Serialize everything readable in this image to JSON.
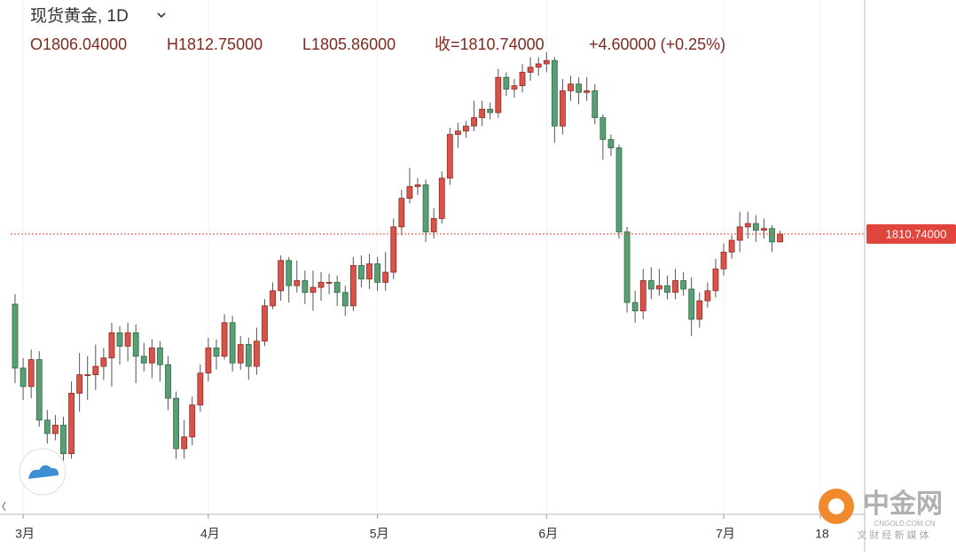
{
  "chart_data": {
    "type": "candlestick",
    "title": "现货黄金, 1D",
    "header": [
      "O1806.04000",
      "H1812.75000",
      "L1805.86000",
      "收=1810.74000",
      "+4.60000 (+0.25%)"
    ],
    "categories": [
      null,
      "3月",
      null,
      null,
      null,
      null,
      null,
      null,
      null,
      null,
      null,
      null,
      null,
      null,
      null,
      null,
      null,
      null,
      null,
      null,
      null,
      null,
      null,
      null,
      "4月",
      null,
      null,
      null,
      null,
      null,
      null,
      null,
      null,
      null,
      null,
      null,
      null,
      null,
      null,
      null,
      null,
      null,
      null,
      null,
      null,
      "5月",
      null,
      null,
      null,
      null,
      null,
      null,
      null,
      null,
      null,
      null,
      null,
      null,
      null,
      null,
      null,
      null,
      null,
      null,
      null,
      null,
      "6月",
      null,
      null,
      null,
      null,
      null,
      null,
      null,
      null,
      null,
      null,
      null,
      null,
      null,
      null,
      null,
      null,
      null,
      null,
      null,
      null,
      null,
      "7月",
      null,
      null,
      null,
      null,
      null,
      null,
      null,
      null,
      null,
      null,
      null,
      "18"
    ],
    "open": [
      1769,
      1731,
      1720,
      1736,
      1700,
      1692,
      1697,
      1680,
      1716,
      1727,
      1727,
      1732,
      1737,
      1752,
      1744,
      1752,
      1738,
      1734,
      1743,
      1733,
      1713,
      1683,
      1690,
      1709,
      1728,
      1743,
      1738,
      1758,
      1734,
      1745,
      1732,
      1747,
      1768,
      1777,
      1795,
      1780,
      1783,
      1776,
      1779,
      1782,
      1782,
      1776,
      1768,
      1792,
      1784,
      1793,
      1782,
      1788,
      1815,
      1832,
      1839,
      1840,
      1812,
      1820,
      1844,
      1870,
      1872,
      1875,
      1880,
      1885,
      1883,
      1904,
      1897,
      1899,
      1907,
      1910,
      1912,
      1914,
      1875,
      1896,
      1900,
      1895,
      1896,
      1880,
      1867,
      1862,
      1812,
      1770,
      1765,
      1783,
      1778,
      1780,
      1776,
      1783,
      1778,
      1760,
      1771,
      1777,
      1790,
      1800,
      1807,
      1815,
      1817,
      1813,
      1814,
      1806.04,
      null,
      null,
      null,
      null,
      null
    ],
    "high": [
      1775,
      1737,
      1742,
      1741,
      1706,
      1703,
      1702,
      1723,
      1740,
      1738,
      1745,
      1743,
      1758,
      1756,
      1758,
      1757,
      1746,
      1748,
      1747,
      1738,
      1717,
      1700,
      1714,
      1733,
      1749,
      1748,
      1763,
      1762,
      1750,
      1749,
      1755,
      1772,
      1782,
      1798,
      1797,
      1795,
      1789,
      1789,
      1788,
      1787,
      1786,
      1780,
      1797,
      1798,
      1799,
      1797,
      1800,
      1820,
      1837,
      1850,
      1844,
      1843,
      1826,
      1848,
      1874,
      1877,
      1878,
      1890,
      1890,
      1889,
      1909,
      1907,
      1903,
      1912,
      1916,
      1916,
      1919,
      1916,
      1903,
      1905,
      1904,
      1904,
      1900,
      1882,
      1870,
      1864,
      1815,
      1777,
      1790,
      1791,
      1790,
      1786,
      1790,
      1788,
      1785,
      1776,
      1782,
      1796,
      1805,
      1810,
      1824,
      1824,
      1822,
      1820,
      1816,
      1812.75,
      null,
      null,
      null,
      null,
      null
    ],
    "low": [
      1722,
      1712,
      1713,
      1696,
      1686,
      1688,
      1676,
      1677,
      1705,
      1712,
      1718,
      1724,
      1720,
      1733,
      1735,
      1722,
      1729,
      1725,
      1723,
      1706,
      1677,
      1677,
      1685,
      1705,
      1723,
      1730,
      1736,
      1729,
      1730,
      1724,
      1727,
      1744,
      1766,
      1771,
      1770,
      1776,
      1769,
      1765,
      1771,
      1775,
      1768,
      1762,
      1765,
      1779,
      1778,
      1777,
      1777,
      1784,
      1810,
      1829,
      1834,
      1806,
      1808,
      1817,
      1840,
      1862,
      1868,
      1872,
      1875,
      1879,
      1880,
      1893,
      1892,
      1895,
      1902,
      1905,
      1907,
      1865,
      1870,
      1890,
      1888,
      1890,
      1876,
      1855,
      1857,
      1808,
      1764,
      1758,
      1760,
      1772,
      1774,
      1772,
      1772,
      1774,
      1750,
      1755,
      1767,
      1773,
      1786,
      1796,
      1800,
      1808,
      1806,
      1808,
      1800,
      1805.86,
      null,
      null,
      null,
      null,
      null
    ],
    "close": [
      1731,
      1720,
      1736,
      1700,
      1692,
      1697,
      1680,
      1716,
      1727,
      1727,
      1732,
      1737,
      1752,
      1744,
      1752,
      1738,
      1734,
      1743,
      1733,
      1713,
      1683,
      1690,
      1709,
      1728,
      1743,
      1738,
      1758,
      1734,
      1745,
      1732,
      1747,
      1768,
      1777,
      1795,
      1780,
      1783,
      1776,
      1779,
      1782,
      1782,
      1776,
      1768,
      1792,
      1784,
      1793,
      1782,
      1788,
      1815,
      1832,
      1839,
      1840,
      1812,
      1820,
      1844,
      1870,
      1872,
      1875,
      1880,
      1885,
      1883,
      1904,
      1897,
      1899,
      1907,
      1910,
      1912,
      1914,
      1875,
      1896,
      1900,
      1895,
      1896,
      1880,
      1867,
      1862,
      1812,
      1770,
      1765,
      1783,
      1778,
      1780,
      1776,
      1783,
      1778,
      1760,
      1771,
      1777,
      1790,
      1800,
      1807,
      1815,
      1817,
      1813,
      1814,
      1806.04,
      1810.74,
      null,
      null,
      null,
      null,
      null
    ],
    "up_color": "#d9534a",
    "down_color": "#5a9e74",
    "ylim": [
      1645,
      1950
    ],
    "last_price": {
      "value": 1810.74,
      "label": "1810.74000"
    },
    "watermark": {
      "name": "中金网",
      "site": "CNGOLD.COM.CN",
      "tagline": "文 财 经 新 媒 体"
    }
  }
}
